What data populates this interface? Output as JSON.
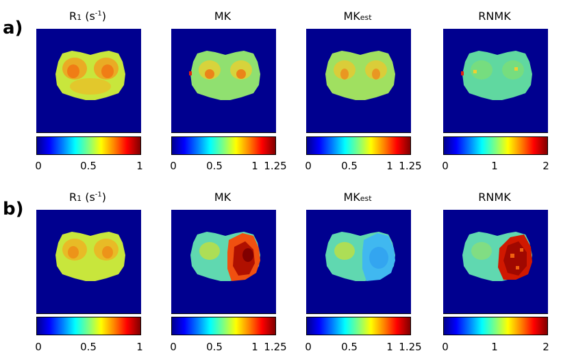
{
  "rows": [
    {
      "label": "a)",
      "panels": [
        {
          "title_main": "R",
          "title_sub": "1",
          "title_rest": " (s",
          "title_sup": "-1",
          "title_end": ")",
          "ticks": [
            "0",
            "0.5",
            "1"
          ]
        },
        {
          "title_main": "MK",
          "title_sub": "",
          "title_rest": "",
          "title_sup": "",
          "title_end": "",
          "ticks": [
            "0",
            "0.5",
            "1",
            "1.25"
          ]
        },
        {
          "title_main": "MK",
          "title_sub": "est",
          "title_rest": "",
          "title_sup": "",
          "title_end": "",
          "ticks": [
            "0",
            "0.5",
            "1",
            "1.25"
          ]
        },
        {
          "title_main": "RNMK",
          "title_sub": "",
          "title_rest": "",
          "title_sup": "",
          "title_end": "",
          "ticks": [
            "0",
            "1",
            "2"
          ]
        }
      ]
    },
    {
      "label": "b)",
      "panels": [
        {
          "title_main": "R",
          "title_sub": "1",
          "title_rest": " (s",
          "title_sup": "-1",
          "title_end": ")",
          "ticks": [
            "0",
            "0.5",
            "1"
          ]
        },
        {
          "title_main": "MK",
          "title_sub": "",
          "title_rest": "",
          "title_sup": "",
          "title_end": "",
          "ticks": [
            "0",
            "0.5",
            "1",
            "1.25"
          ]
        },
        {
          "title_main": "MK",
          "title_sub": "est",
          "title_rest": "",
          "title_sup": "",
          "title_end": "",
          "ticks": [
            "0",
            "0.5",
            "1",
            "1.25"
          ]
        },
        {
          "title_main": "RNMK",
          "title_sub": "",
          "title_rest": "",
          "title_sup": "",
          "title_end": "",
          "ticks": [
            "0",
            "1",
            "2"
          ]
        }
      ]
    }
  ],
  "colors": {
    "background_map": "#00008f",
    "brain_base": "#c8e63c",
    "brain_hot": "#f5a020",
    "brain_cool": "#40c8e0",
    "lesion": "#c01000",
    "lesion_dark": "#800000"
  },
  "colormap": "jet"
}
